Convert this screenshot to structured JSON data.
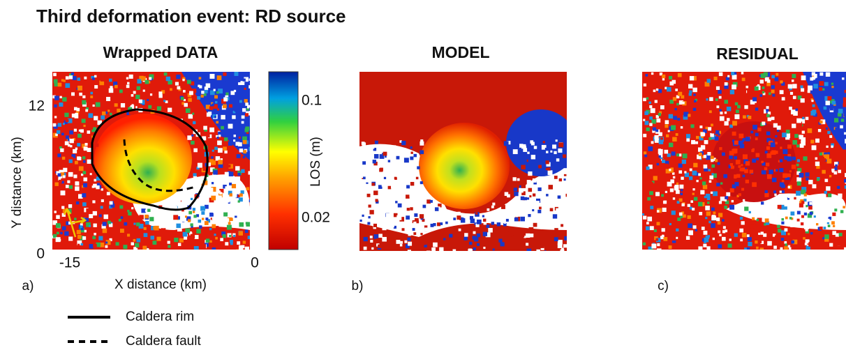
{
  "header": {
    "title": "Third deformation event: RD source"
  },
  "panels": [
    {
      "title": "Wrapped DATA",
      "letter": "a)"
    },
    {
      "title": "MODEL",
      "letter": "b)"
    },
    {
      "title": "RESIDUAL",
      "letter": "c)"
    }
  ],
  "axes": {
    "x_label": "X distance  (km)",
    "y_label": "Y distance  (km)",
    "x_tick_labels": [
      "-15",
      "0"
    ],
    "y_tick_labels": [
      "12",
      "0"
    ]
  },
  "colorbar": {
    "label": "LOS  (m)",
    "tick_labels": [
      "0.1",
      "0.02"
    ]
  },
  "legend": [
    "Caldera rim",
    "Caldera fault"
  ]
}
